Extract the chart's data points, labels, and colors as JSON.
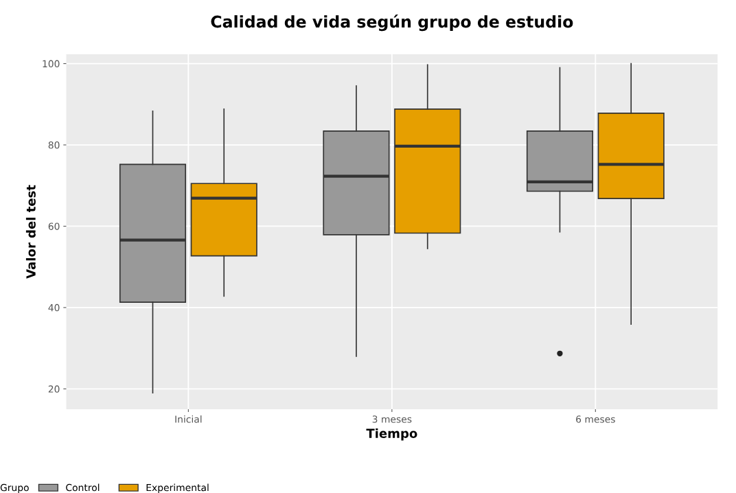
{
  "chart_data": {
    "type": "box",
    "title": "Calidad de vida según grupo de estudio",
    "xlabel": "Tiempo",
    "ylabel": "Valor del test",
    "legend_title": "Grupo",
    "categories": [
      "Inicial",
      "3 meses",
      "6 meses"
    ],
    "series": [
      {
        "name": "Control",
        "color": "#999999",
        "boxes": [
          {
            "low": 19.0,
            "q1": 41.3,
            "median": 56.6,
            "q3": 75.2,
            "high": 88.3
          },
          {
            "low": 28.0,
            "q1": 57.9,
            "median": 72.3,
            "q3": 83.4,
            "high": 94.5
          },
          {
            "low": 58.6,
            "q1": 68.6,
            "median": 70.9,
            "q3": 83.4,
            "high": 99.0,
            "outliers": [
              28.7
            ]
          }
        ]
      },
      {
        "name": "Experimental",
        "color": "#e69f00",
        "boxes": [
          {
            "low": 42.8,
            "q1": 52.7,
            "median": 66.9,
            "q3": 70.5,
            "high": 88.8
          },
          {
            "low": 54.5,
            "q1": 58.3,
            "median": 79.7,
            "q3": 88.8,
            "high": 99.7
          },
          {
            "low": 35.9,
            "q1": 66.8,
            "median": 75.2,
            "q3": 87.8,
            "high": 100.0
          }
        ]
      }
    ],
    "ylim": [
      15,
      102.3
    ],
    "yticks": [
      20,
      40,
      60,
      80,
      100
    ],
    "grid": true,
    "legend": "bottom"
  }
}
